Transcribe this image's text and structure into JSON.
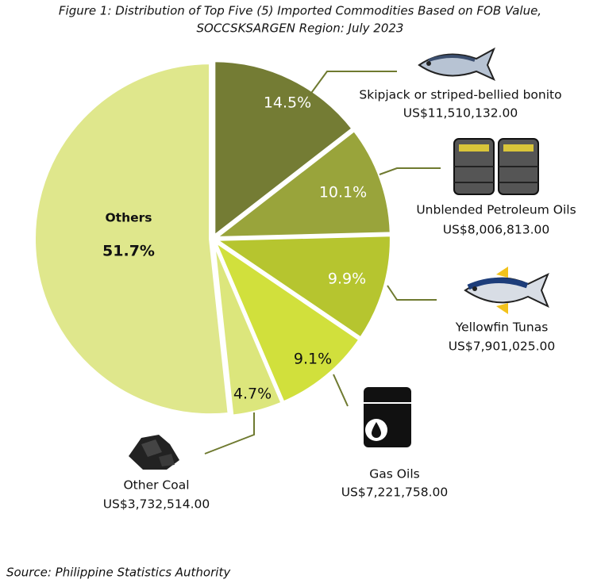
{
  "chart_data": {
    "type": "pie",
    "title": [
      "Figure 1: Distribution of Top Five (5) Imported Commodities Based on FOB Value,",
      "SOCCSKSARGEN Region: July 2023"
    ],
    "categories": [
      "Skipjack or striped-bellied bonito",
      "Unblended Petroleum Oils",
      "Yellowfin Tunas",
      "Gas Oils",
      "Other Coal",
      "Others"
    ],
    "values": [
      14.5,
      10.1,
      9.9,
      9.1,
      4.7,
      51.7
    ],
    "value_labels": [
      "14.5%",
      "10.1%",
      "9.9%",
      "9.1%",
      "4.7%",
      "51.7%"
    ],
    "amounts": [
      "US$11,510,132.00",
      "US$8,006,813.00",
      "US$7,901,025.00",
      "US$7,221,758.00",
      "US$3,732,514.00",
      null
    ],
    "colors": [
      "#747c34",
      "#99a43b",
      "#b6c52f",
      "#d1e03c",
      "#dce67c",
      "#dfe78c"
    ],
    "source": "Source: Philippine Statistics Authority"
  }
}
